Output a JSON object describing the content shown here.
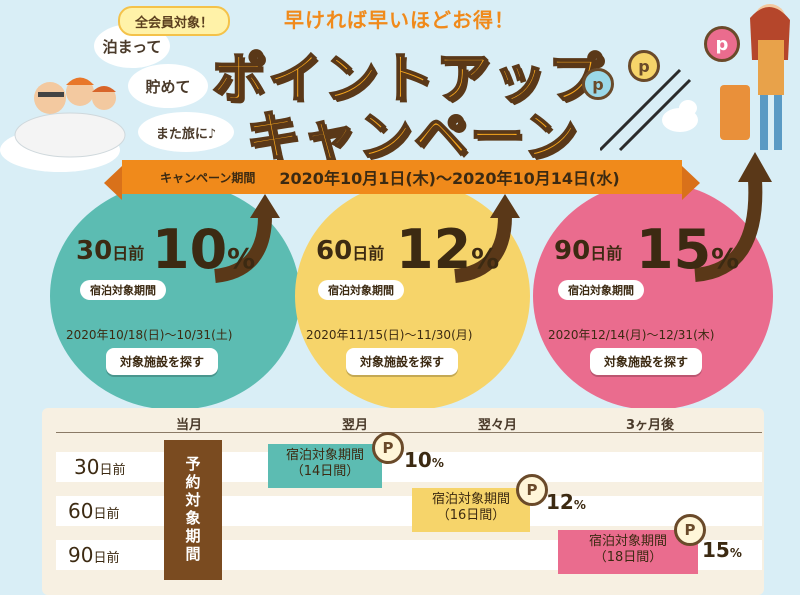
{
  "header": {
    "badge": "全会員対象！",
    "subtitle": "早ければ早いほどお得！",
    "title_line1": "ポイントアップ",
    "title_line2": "キャンペーン",
    "bubbles": [
      "泊まって",
      "貯めて",
      "また旅に♪"
    ]
  },
  "ribbon": {
    "label": "キャンペーン期間",
    "period": "2020年10月1日(木)～2020年10月14日(水)"
  },
  "tiers": [
    {
      "days": "30",
      "days_suffix": "日前",
      "percent": "10",
      "percent_suffix": "%",
      "stay_label": "宿泊対象期間",
      "dates": "2020年10/18(日)～10/31(土)",
      "button": "対象施設を探す",
      "color": "#5cbcb2"
    },
    {
      "days": "60",
      "days_suffix": "日前",
      "percent": "12",
      "percent_suffix": "%",
      "stay_label": "宿泊対象期間",
      "dates": "2020年11/15(日)～11/30(月)",
      "button": "対象施設を探す",
      "color": "#f6d46a"
    },
    {
      "days": "90",
      "days_suffix": "日前",
      "percent": "15",
      "percent_suffix": "%",
      "stay_label": "宿泊対象期間",
      "dates": "2020年12/14(月)～12/31(木)",
      "button": "対象施設を探す",
      "color": "#ea6c8e"
    }
  ],
  "timeline": {
    "columns": [
      "当月",
      "翌月",
      "翌々月",
      "3ヶ月後"
    ],
    "booking_period": "予約対象期間",
    "rows": [
      {
        "days": "30",
        "suffix": "日前",
        "stay": "宿泊対象期間",
        "stay_days": "（14日間）",
        "coin": "P",
        "percent": "10",
        "percent_suffix": "%"
      },
      {
        "days": "60",
        "suffix": "日前",
        "stay": "宿泊対象期間",
        "stay_days": "（16日間）",
        "coin": "P",
        "percent": "12",
        "percent_suffix": "%"
      },
      {
        "days": "90",
        "suffix": "日前",
        "stay": "宿泊対象期間",
        "stay_days": "（18日間）",
        "coin": "P",
        "percent": "15",
        "percent_suffix": "%"
      }
    ]
  },
  "decor": {
    "coin_letter": "p"
  }
}
